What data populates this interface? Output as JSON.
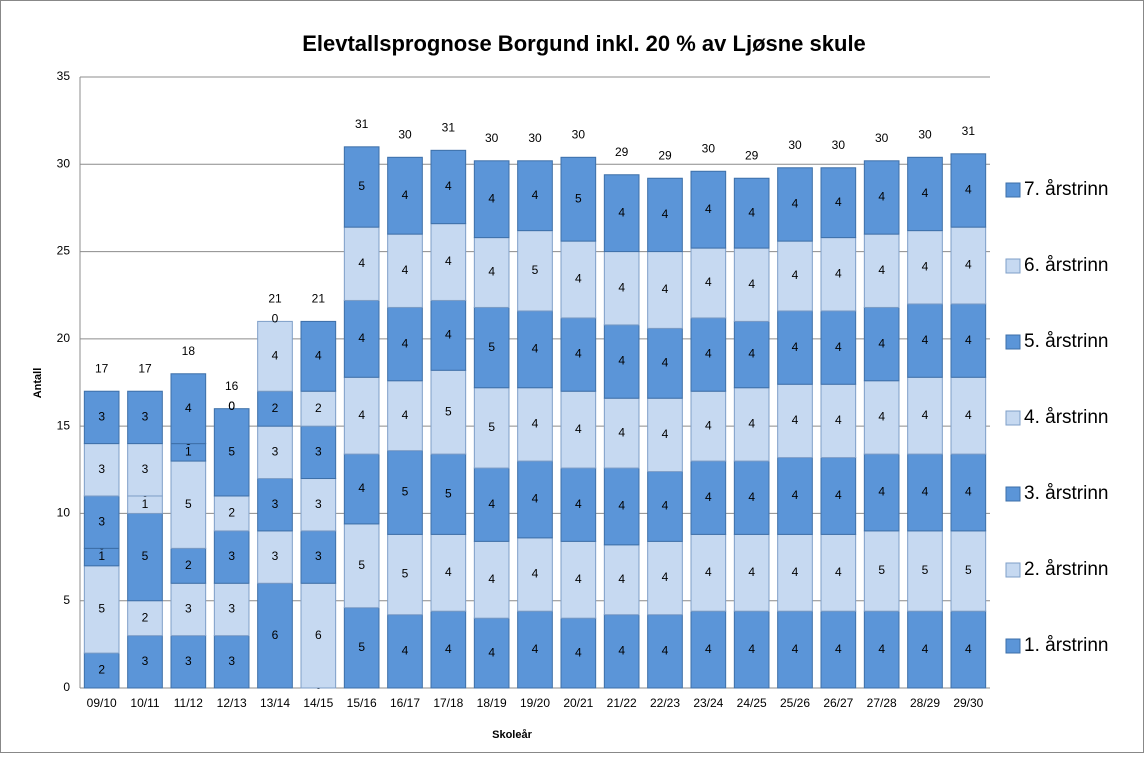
{
  "chart_data": {
    "type": "stacked_bar",
    "title": "Elevtallsprognose Borgund inkl. 20 % av Ljøsne skule",
    "x_label": "Skoleår",
    "y_label": "Antall",
    "categories": [
      "09/10",
      "10/11",
      "11/12",
      "12/13",
      "13/14",
      "14/15",
      "15/16",
      "16/17",
      "17/18",
      "18/19",
      "19/20",
      "20/21",
      "21/22",
      "22/23",
      "23/24",
      "24/25",
      "25/26",
      "26/27",
      "27/28",
      "28/29",
      "29/30"
    ],
    "series": [
      {
        "name": "1. årstrinn",
        "color": "#5b95d8",
        "values": [
          2,
          3,
          3,
          3,
          6,
          0,
          4.6,
          4.2,
          4.4,
          4.0,
          4.4,
          4.0,
          4.2,
          4.2,
          4.4,
          4.4,
          4.4,
          4.4,
          4.4,
          4.4,
          4.4
        ],
        "value_labels": [
          "2",
          "3",
          "3",
          "3",
          "6",
          "0",
          "5",
          "4",
          "4",
          "4",
          "4",
          "4",
          "4",
          "4",
          "4",
          "4",
          "4",
          "4",
          "4",
          "4",
          "4"
        ]
      },
      {
        "name": "2. årstrinn",
        "color": "#c6d9f1",
        "values": [
          5,
          2,
          3,
          3,
          3,
          6,
          4.8,
          4.6,
          4.4,
          4.4,
          4.2,
          4.4,
          4.0,
          4.2,
          4.4,
          4.4,
          4.4,
          4.4,
          4.6,
          4.6,
          4.6
        ],
        "value_labels": [
          "5",
          "2",
          "3",
          "3",
          "3",
          "6",
          "5",
          "5",
          "4",
          "4",
          "4",
          "4",
          "4",
          "4",
          "4",
          "4",
          "4",
          "4",
          "5",
          "5",
          "5"
        ]
      },
      {
        "name": "3. årstrinn",
        "color": "#5b95d8",
        "values": [
          1,
          5,
          2,
          3,
          3,
          3,
          4.0,
          4.8,
          4.6,
          4.2,
          4.4,
          4.2,
          4.4,
          4.0,
          4.2,
          4.2,
          4.4,
          4.4,
          4.4,
          4.4,
          4.4
        ],
        "value_labels": [
          "1",
          "5",
          "2",
          "3",
          "3",
          "3",
          "4",
          "5",
          "5",
          "4",
          "4",
          "4",
          "4",
          "4",
          "4",
          "4",
          "4",
          "4",
          "4",
          "4",
          "4"
        ]
      },
      {
        "name": "4. årstrinn",
        "color": "#c6d9f1",
        "values": [
          0,
          1,
          5,
          2,
          3,
          3,
          4.4,
          4.0,
          4.8,
          4.6,
          4.2,
          4.4,
          4.0,
          4.2,
          4.0,
          4.2,
          4.2,
          4.2,
          4.2,
          4.4,
          4.4
        ],
        "value_labels": [
          "0",
          "1",
          "5",
          "2",
          "3",
          "3",
          "4",
          "4",
          "5",
          "5",
          "4",
          "4",
          "4",
          "4",
          "4",
          "4",
          "4",
          "4",
          "4",
          "4",
          "4"
        ]
      },
      {
        "name": "5. årstrinn",
        "color": "#5b95d8",
        "values": [
          3,
          0,
          1,
          5,
          2,
          3,
          4.4,
          4.2,
          4.0,
          4.6,
          4.4,
          4.2,
          4.2,
          4.0,
          4.2,
          3.8,
          4.2,
          4.2,
          4.2,
          4.2,
          4.2
        ],
        "value_labels": [
          "3",
          "0",
          "1",
          "5",
          "2",
          "3",
          "4",
          "4",
          "4",
          "5",
          "4",
          "4",
          "4",
          "4",
          "4",
          "4",
          "4",
          "4",
          "4",
          "4",
          "4"
        ]
      },
      {
        "name": "6. årstrinn",
        "color": "#c6d9f1",
        "values": [
          3,
          3,
          0,
          0,
          4,
          2,
          4.2,
          4.2,
          4.4,
          4.0,
          4.6,
          4.4,
          4.2,
          4.4,
          4.0,
          4.2,
          4.0,
          4.2,
          4.2,
          4.2,
          4.4
        ],
        "value_labels": [
          "3",
          "3",
          "0",
          "0",
          "4",
          "2",
          "4",
          "4",
          "4",
          "4",
          "5",
          "4",
          "4",
          "4",
          "4",
          "4",
          "4",
          "4",
          "4",
          "4",
          "4"
        ]
      },
      {
        "name": "7. årstrinn",
        "color": "#5b95d8",
        "values": [
          3,
          3,
          4,
          0,
          0,
          4,
          4.6,
          4.4,
          4.2,
          4.4,
          4.0,
          4.8,
          4.4,
          4.2,
          4.4,
          4.0,
          4.2,
          4.0,
          4.2,
          4.2,
          4.2
        ],
        "value_labels": [
          "3",
          "3",
          "4",
          "0",
          "0",
          "4",
          "5",
          "4",
          "4",
          "4",
          "4",
          "5",
          "4",
          "4",
          "4",
          "4",
          "4",
          "4",
          "4",
          "4",
          "4"
        ]
      }
    ],
    "totals": [
      17,
      17,
      18,
      16,
      21,
      21,
      31.0,
      30.4,
      30.8,
      30.2,
      30.2,
      30.4,
      29.4,
      29.2,
      29.6,
      29.2,
      29.8,
      29.8,
      30.2,
      30.4,
      30.6
    ],
    "total_labels": [
      "17",
      "17",
      "18",
      "16",
      "21",
      "21",
      "31",
      "30",
      "31",
      "30",
      "30",
      "30",
      "29",
      "29",
      "30",
      "29",
      "30",
      "30",
      "30",
      "30",
      "31"
    ],
    "ylim": [
      0,
      35
    ],
    "yticks": [
      0,
      5,
      10,
      15,
      20,
      25,
      30,
      35
    ],
    "grid": true,
    "legend": "right"
  }
}
